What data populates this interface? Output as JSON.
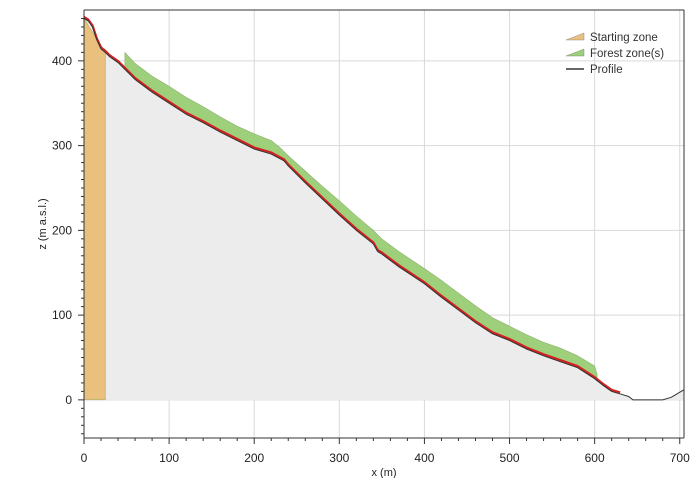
{
  "chart_data": {
    "type": "area",
    "title": "",
    "xlabel": "x (m)",
    "ylabel": "z (m a.s.l.)",
    "xlim": [
      0,
      705
    ],
    "ylim": [
      -45,
      460
    ],
    "xticks": [
      0,
      100,
      200,
      300,
      400,
      500,
      600,
      700
    ],
    "yticks": [
      0,
      100,
      200,
      300,
      400
    ],
    "grid": true,
    "legend_position": "top-right",
    "colors": {
      "starting_zone": "#e9c07e",
      "forest_zone": "#9ed07c",
      "profile": "#333333",
      "trajectory": "#d42020",
      "terrain_fill": "#ececec",
      "grid": "#d9d9d9"
    },
    "series": [
      {
        "name": "Profile",
        "x": [
          0,
          5,
          10,
          15,
          20,
          25,
          30,
          40,
          50,
          60,
          80,
          100,
          120,
          140,
          160,
          180,
          200,
          220,
          235,
          240,
          260,
          280,
          300,
          320,
          340,
          345,
          350,
          370,
          400,
          420,
          440,
          460,
          480,
          500,
          520,
          540,
          560,
          580,
          600,
          610,
          620,
          630,
          640,
          645,
          660,
          680,
          690,
          695,
          705
        ],
        "y": [
          450,
          447,
          440,
          425,
          414,
          410,
          405,
          398,
          388,
          378,
          363,
          350,
          337,
          327,
          316,
          306,
          296,
          290,
          282,
          276,
          256,
          237,
          218,
          200,
          184,
          175,
          172,
          157,
          137,
          121,
          106,
          91,
          78,
          70,
          60,
          52,
          45,
          38,
          25,
          17,
          10,
          7,
          4,
          0,
          0,
          0,
          3,
          6,
          12
        ]
      },
      {
        "name": "Starting zone",
        "x": [
          0,
          25
        ],
        "y_top": [
          450,
          410
        ],
        "y_bottom": [
          0,
          0
        ]
      },
      {
        "name": "Forest zone(s)",
        "x": [
          48,
          60,
          80,
          100,
          120,
          140,
          160,
          180,
          200,
          220,
          230,
          240,
          260,
          280,
          300,
          320,
          340,
          350,
          370,
          400,
          420,
          440,
          460,
          480,
          500,
          520,
          540,
          560,
          580,
          600,
          603
        ],
        "y_top": [
          410,
          397,
          382,
          370,
          357,
          346,
          334,
          323,
          314,
          306,
          298,
          288,
          270,
          252,
          235,
          217,
          200,
          190,
          175,
          155,
          141,
          126,
          111,
          97,
          87,
          77,
          68,
          61,
          52,
          40,
          30
        ],
        "y_bottom": [
          392,
          380,
          365,
          352,
          339,
          329,
          318,
          308,
          298,
          292,
          286,
          277,
          257,
          238,
          219,
          201,
          185,
          173,
          158,
          138,
          122,
          107,
          92,
          79,
          71,
          61,
          53,
          46,
          39,
          25,
          22
        ]
      }
    ]
  },
  "legend": [
    {
      "label": "Starting zone",
      "color": "#e9c07e",
      "kind": "patch"
    },
    {
      "label": "Forest zone(s)",
      "color": "#9ed07c",
      "kind": "patch"
    },
    {
      "label": "Profile",
      "color": "#333333",
      "kind": "line"
    }
  ]
}
